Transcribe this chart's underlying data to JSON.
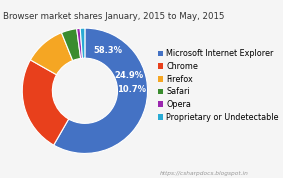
{
  "title": "Browser market shares January, 2015 to May, 2015",
  "labels": [
    "Microsoft Internet Explorer",
    "Chrome",
    "Firefox",
    "Safari",
    "Opera",
    "Proprietary or Undetectable"
  ],
  "values": [
    58.3,
    24.9,
    10.7,
    4.0,
    0.9,
    1.2
  ],
  "colors": [
    "#4472C4",
    "#E8401C",
    "#F5A623",
    "#3A8C2F",
    "#9B27AF",
    "#29ABD4"
  ],
  "label_texts": [
    "58.3%",
    "24.9%",
    "10.7%",
    "",
    "",
    ""
  ],
  "watermark": "https://csharpdocs.blogspot.in",
  "background_color": "#f5f5f5",
  "title_fontsize": 6.2,
  "legend_fontsize": 5.8,
  "annot_fontsize": 6.0
}
